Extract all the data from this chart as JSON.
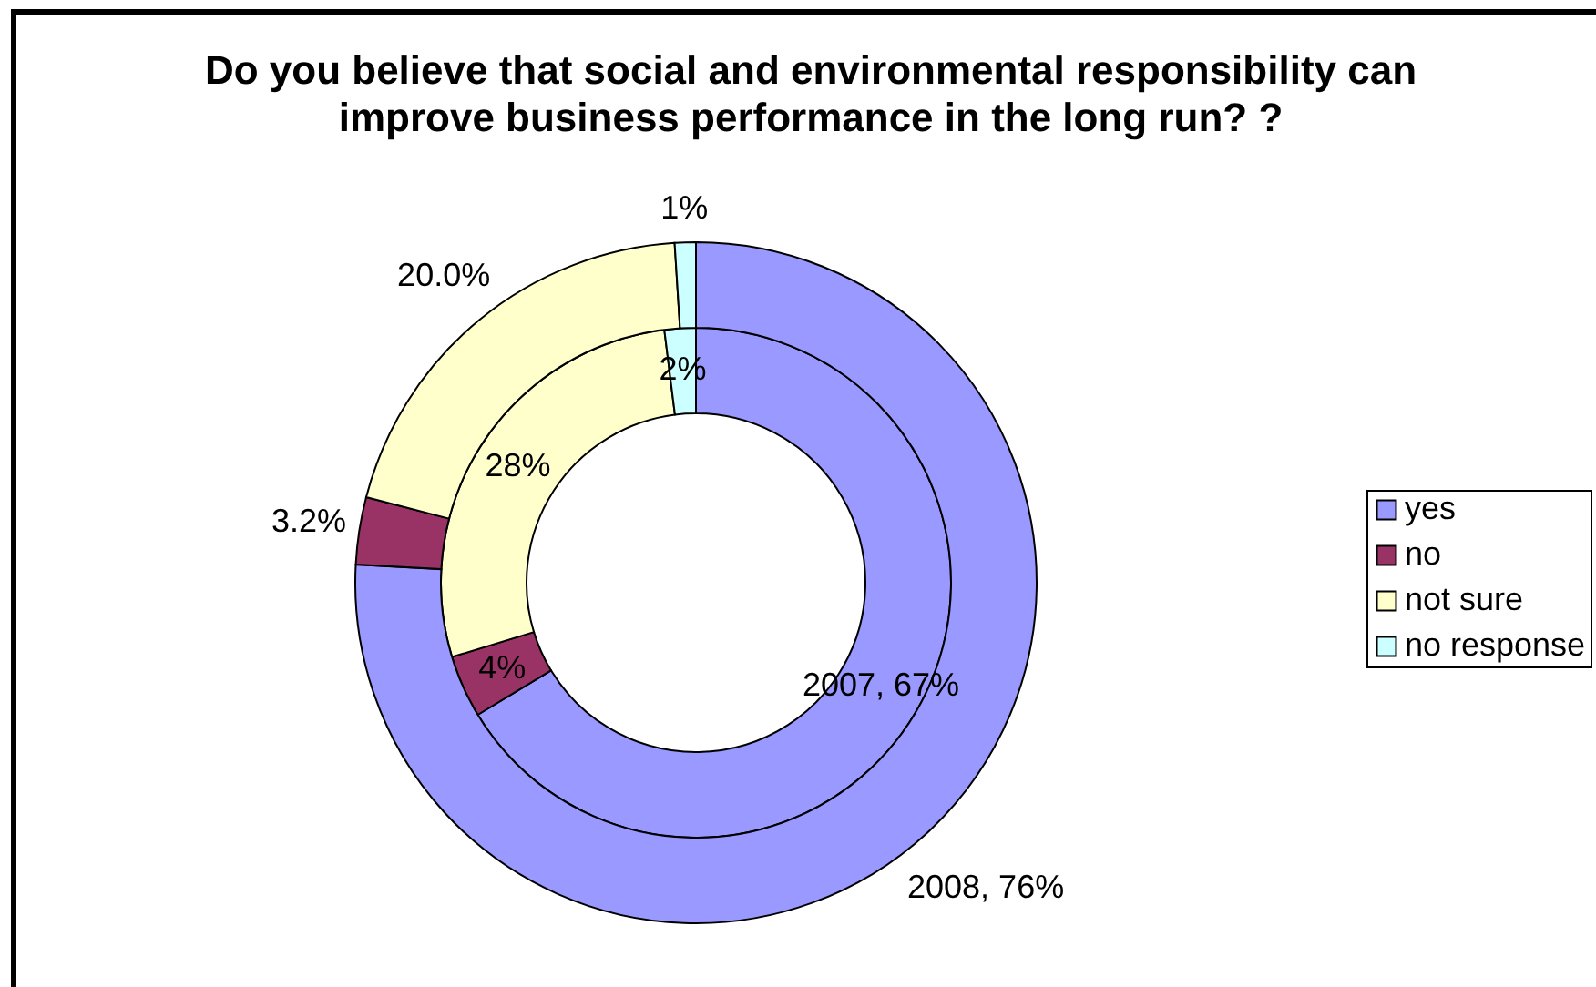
{
  "chart_data": {
    "type": "donut",
    "title": "Do you believe that social and environmental responsibility can improve business performance in the long run? ?",
    "categories": [
      "yes",
      "no",
      "not sure",
      "no response"
    ],
    "colors": [
      "#9999ff",
      "#993366",
      "#ffffcc",
      "#ccffff"
    ],
    "series": [
      {
        "values": [
          67,
          4,
          28,
          2
        ],
        "value_labels": [
          "2007, 67%",
          "4%",
          "28%",
          "2%"
        ]
      },
      {
        "values": [
          76,
          3.2,
          20.0,
          1
        ],
        "value_labels": [
          "2008, 76%",
          "3.2%",
          "20.0%",
          "1%"
        ]
      }
    ],
    "legend": "right"
  }
}
